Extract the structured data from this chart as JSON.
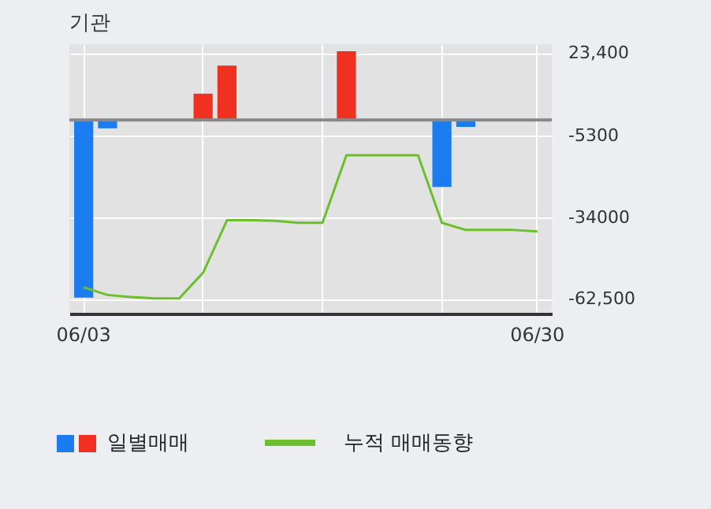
{
  "chart_data": {
    "type": "bar",
    "title": "기관",
    "categories": [
      "06/03",
      null,
      null,
      null,
      null,
      null,
      null,
      null,
      null,
      null,
      null,
      null,
      null,
      null,
      null,
      null,
      null,
      null,
      null,
      "06/30"
    ],
    "series": [
      {
        "name": "일별매매",
        "colors": [
          "#1a7cf0",
          "#1a7cf0",
          "#1a7cf0",
          "#1a7cf0",
          "#1a7cf0",
          "#f03020",
          "#f03020",
          "#1a7cf0",
          "#1a7cf0",
          "#1a7cf0",
          "#1a7cf0",
          "#f03020",
          "#1a7cf0",
          "#1a7cf0",
          "#1a7cf0",
          "#1a7cf0",
          "#1a7cf0",
          "#1a7cf0",
          "#1a7cf0",
          "#1a7cf0"
        ],
        "values": [
          -62000,
          -2900,
          0,
          0,
          0,
          9200,
          19000,
          0,
          0,
          0,
          0,
          24000,
          0,
          0,
          0,
          -23400,
          -2400,
          0,
          0,
          0
        ]
      },
      {
        "type": "line",
        "name": "누적 매매동향",
        "color": "#6cbf2a",
        "values": [
          -58400,
          -61100,
          -61800,
          -62300,
          -62300,
          -53300,
          -35000,
          -35000,
          -35200,
          -35900,
          -35900,
          -12300,
          -12300,
          -12300,
          -12300,
          -35900,
          -38400,
          -38400,
          -38400,
          -38900
        ]
      }
    ],
    "ylim": [
      -67600,
      26500
    ],
    "yticks": [
      {
        "value": 23400,
        "label": "23,400"
      },
      {
        "value": -5300,
        "label": "-5300"
      },
      {
        "value": -34000,
        "label": "-34000"
      },
      {
        "value": -62500,
        "label": "-62,500"
      }
    ],
    "grid": true,
    "legend": "bottom",
    "ref_lines": [
      {
        "axis": "y",
        "value": 0,
        "color": "#888888"
      }
    ]
  }
}
